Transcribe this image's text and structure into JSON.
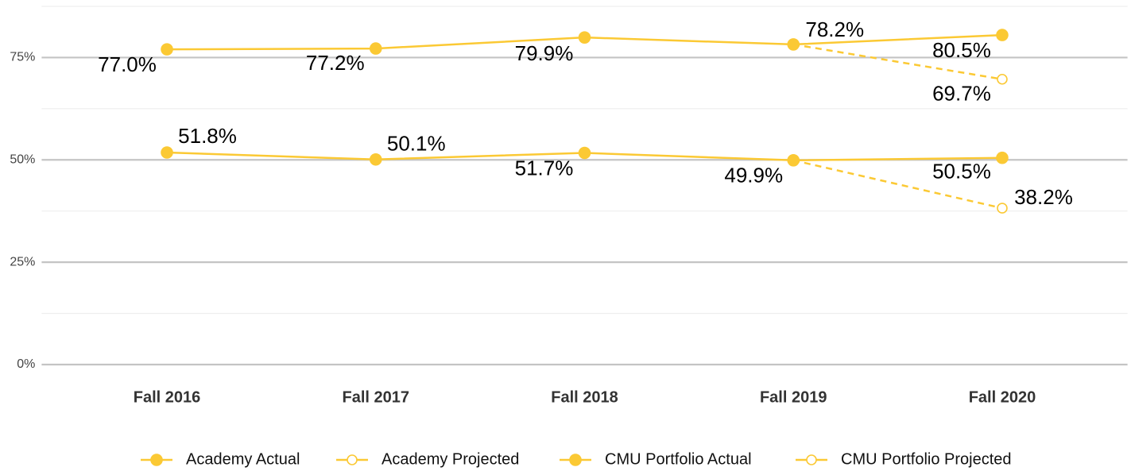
{
  "chart_data": {
    "type": "line",
    "categories": [
      "Fall 2016",
      "Fall 2017",
      "Fall 2018",
      "Fall 2019",
      "Fall 2020"
    ],
    "series": [
      {
        "name": "Academy Actual",
        "color": "#fbc934",
        "line_style": "solid",
        "marker": "filled",
        "values": [
          77.0,
          77.2,
          79.9,
          78.2,
          80.5
        ],
        "value_labels": [
          "77.0%",
          "77.2%",
          "79.9%",
          "78.2%",
          "80.5%"
        ]
      },
      {
        "name": "Academy Projected",
        "color": "#fbc934",
        "line_style": "dashed",
        "marker": "open",
        "values": [
          null,
          null,
          null,
          78.2,
          69.7
        ],
        "value_labels": [
          null,
          null,
          null,
          null,
          "69.7%"
        ]
      },
      {
        "name": "CMU Portfolio Actual",
        "color": "#fbc934",
        "line_style": "solid",
        "marker": "filled",
        "values": [
          51.8,
          50.1,
          51.7,
          49.9,
          50.5
        ],
        "value_labels": [
          "51.8%",
          "50.1%",
          "51.7%",
          "49.9%",
          "50.5%"
        ]
      },
      {
        "name": "CMU Portfolio Projected",
        "color": "#fbc934",
        "line_style": "dashed",
        "marker": "open",
        "values": [
          null,
          null,
          null,
          49.9,
          38.2
        ],
        "value_labels": [
          null,
          null,
          null,
          null,
          "38.2%"
        ]
      }
    ],
    "ylim": [
      0,
      87.5
    ],
    "yticks": [
      {
        "value": 0,
        "label": "0%"
      },
      {
        "value": 25,
        "label": "25%"
      },
      {
        "value": 50,
        "label": "50%"
      },
      {
        "value": 75,
        "label": "75%"
      }
    ],
    "minor_yticks": [
      12.5,
      37.5,
      62.5,
      87.5
    ],
    "grid": true,
    "legend": "bottom"
  }
}
